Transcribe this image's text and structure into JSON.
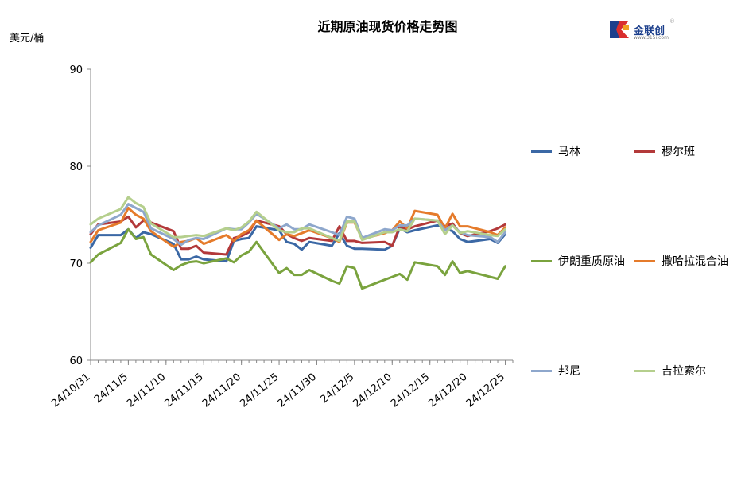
{
  "title": "近期原油现货价格走势图",
  "unit_label": "美元/桶",
  "logo": {
    "name": "金联创",
    "sub": "www.315i.com",
    "reg": "®"
  },
  "chart_data": {
    "type": "line",
    "title": "近期原油现货价格走势图",
    "ylabel": "美元/桶",
    "ylim": [
      60,
      90
    ],
    "yticks": [
      60,
      70,
      80,
      90
    ],
    "xlim": [
      "2024-10-31",
      "2024-12-26"
    ],
    "xticks": [
      "24/10/31",
      "24/11/5",
      "24/11/10",
      "24/11/15",
      "24/11/20",
      "24/11/25",
      "24/11/30",
      "24/12/5",
      "24/12/10",
      "24/12/15",
      "24/12/20",
      "24/12/25"
    ],
    "grid": false,
    "legend": "right",
    "x": [
      "2024-10-31",
      "2024-11-01",
      "2024-11-04",
      "2024-11-05",
      "2024-11-06",
      "2024-11-07",
      "2024-11-08",
      "2024-11-11",
      "2024-11-12",
      "2024-11-13",
      "2024-11-14",
      "2024-11-15",
      "2024-11-18",
      "2024-11-19",
      "2024-11-20",
      "2024-11-21",
      "2024-11-22",
      "2024-11-25",
      "2024-11-26",
      "2024-11-27",
      "2024-11-28",
      "2024-11-29",
      "2024-12-02",
      "2024-12-03",
      "2024-12-04",
      "2024-12-05",
      "2024-12-06",
      "2024-12-09",
      "2024-12-10",
      "2024-12-11",
      "2024-12-12",
      "2024-12-13",
      "2024-12-16",
      "2024-12-17",
      "2024-12-18",
      "2024-12-19",
      "2024-12-20",
      "2024-12-23",
      "2024-12-24",
      "2024-12-25"
    ],
    "series": [
      {
        "name": "马林",
        "color": "#3b68a5",
        "values": [
          71.6,
          72.9,
          72.9,
          73.5,
          72.6,
          73.2,
          73.0,
          72.0,
          70.4,
          70.4,
          70.7,
          70.4,
          70.2,
          72.3,
          72.5,
          72.6,
          73.8,
          73.4,
          72.2,
          72.0,
          71.4,
          72.2,
          71.8,
          73.1,
          71.8,
          71.5,
          71.5,
          71.4,
          71.8,
          73.6,
          73.2,
          73.4,
          73.9,
          73.6,
          73.3,
          72.5,
          72.2,
          72.5,
          72.1,
          73.0
        ]
      },
      {
        "name": "穆尔班",
        "color": "#b3393a",
        "values": [
          73.0,
          74.0,
          74.3,
          74.8,
          73.7,
          74.4,
          74.2,
          73.3,
          71.5,
          71.5,
          71.8,
          71.1,
          70.9,
          72.6,
          72.8,
          73.2,
          74.4,
          73.8,
          73.0,
          72.6,
          72.3,
          72.6,
          72.3,
          73.8,
          72.3,
          72.3,
          72.1,
          72.2,
          71.8,
          73.8,
          73.5,
          73.8,
          74.4,
          73.8,
          74.1,
          73.1,
          72.8,
          73.3,
          73.6,
          74.0
        ]
      },
      {
        "name": "伊朗重质原油",
        "color": "#7aa33e",
        "values": [
          70.1,
          70.9,
          72.1,
          73.5,
          72.5,
          72.7,
          70.9,
          69.3,
          69.8,
          70.1,
          70.2,
          70.0,
          70.5,
          70.1,
          70.8,
          71.2,
          72.2,
          69.0,
          69.5,
          68.8,
          68.8,
          69.3,
          68.2,
          67.9,
          69.7,
          69.5,
          67.4,
          68.3,
          68.6,
          68.9,
          68.3,
          70.1,
          69.7,
          68.8,
          70.2,
          69.0,
          69.2,
          68.6,
          68.4,
          69.7
        ]
      },
      {
        "name": "撒哈拉混合油",
        "color": "#e57b2b",
        "values": [
          72.2,
          73.4,
          74.2,
          75.7,
          75.0,
          74.6,
          73.3,
          71.7,
          72.2,
          72.3,
          72.6,
          72.0,
          72.9,
          72.3,
          73.0,
          73.4,
          74.4,
          72.4,
          73.0,
          72.8,
          73.1,
          73.4,
          72.6,
          72.2,
          74.2,
          74.2,
          72.5,
          73.1,
          73.4,
          74.3,
          73.6,
          75.4,
          75.0,
          73.6,
          75.1,
          73.8,
          73.8,
          73.2,
          72.9,
          73.7
        ]
      },
      {
        "name": "邦尼",
        "color": "#8ea7cc",
        "values": [
          73.2,
          73.9,
          75.0,
          76.1,
          75.7,
          75.3,
          73.6,
          72.5,
          71.9,
          72.4,
          72.6,
          72.5,
          73.6,
          73.5,
          73.5,
          74.2,
          75.1,
          73.6,
          74.0,
          73.5,
          73.5,
          74.0,
          73.2,
          72.9,
          74.8,
          74.6,
          72.6,
          73.5,
          73.4,
          73.9,
          73.9,
          74.6,
          74.4,
          73.4,
          73.9,
          73.2,
          72.9,
          72.7,
          72.2,
          73.2
        ]
      },
      {
        "name": "吉拉索尔",
        "color": "#b5cf8d",
        "values": [
          74.0,
          74.6,
          75.6,
          76.8,
          76.2,
          75.8,
          74.1,
          72.7,
          72.7,
          72.8,
          72.9,
          72.8,
          73.6,
          73.4,
          73.7,
          74.3,
          75.3,
          73.4,
          73.2,
          73.2,
          73.6,
          73.6,
          72.6,
          72.3,
          74.3,
          74.3,
          72.4,
          73.2,
          73.2,
          73.5,
          73.3,
          74.6,
          74.4,
          73.0,
          73.9,
          73.1,
          73.3,
          72.9,
          72.8,
          73.5
        ]
      }
    ]
  }
}
